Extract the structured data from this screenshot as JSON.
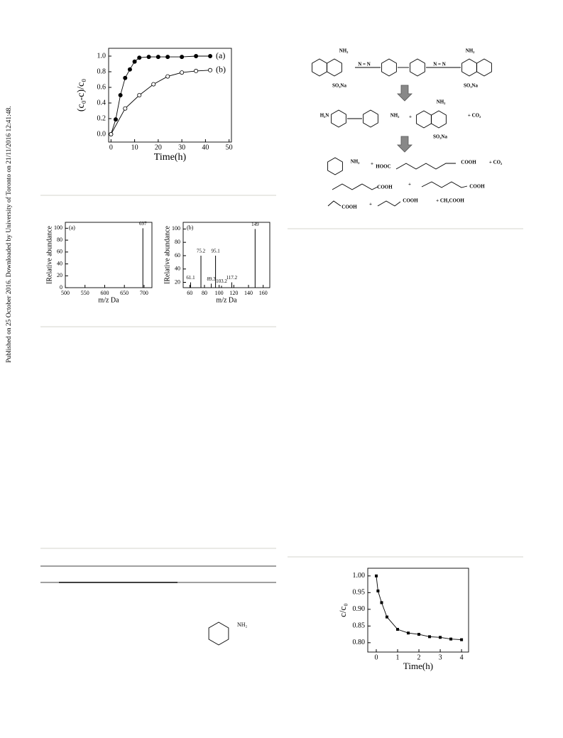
{
  "sidebar": "Published on 25 October 2016. Downloaded by University of Toronto on 21/11/2016 12:41:48.",
  "chart_data": [
    {
      "type": "line",
      "xlabel": "Time(h)",
      "ylabel": "(c₀-c)/c₀",
      "xlim": [
        -1,
        51
      ],
      "ylim": [
        -0.1,
        1.1
      ],
      "xticks": [
        0,
        10,
        20,
        30,
        40,
        50
      ],
      "yticks": [
        {
          "value": 0,
          "label": "0.0"
        },
        {
          "value": 0.2,
          "label": "0.2"
        },
        {
          "value": 0.4,
          "label": "0.4"
        },
        {
          "value": 0.6,
          "label": "0.6"
        },
        {
          "value": 0.8,
          "label": "0.8"
        },
        {
          "value": 1,
          "label": "1.0"
        }
      ],
      "series": [
        {
          "name": "(a)",
          "color": "#000000",
          "marker": "filled",
          "x": [
            0,
            2,
            4,
            6,
            8,
            10,
            12,
            16,
            20,
            24,
            30,
            36,
            42
          ],
          "values": [
            0,
            0.19,
            0.5,
            0.72,
            0.83,
            0.93,
            0.98,
            0.99,
            0.99,
            0.99,
            0.99,
            1.0,
            1.0
          ]
        },
        {
          "name": "(b)",
          "color": "#000000",
          "marker": "open",
          "x": [
            0,
            6,
            12,
            18,
            24,
            30,
            36,
            42
          ],
          "values": [
            0,
            0.33,
            0.5,
            0.64,
            0.74,
            0.79,
            0.81,
            0.82
          ]
        }
      ]
    },
    {
      "type": "stem",
      "panel_label": "(a)",
      "xlabel": "m/z  Da",
      "ylabel": "IRelative abundance",
      "xlim": [
        500,
        720
      ],
      "ylim": [
        0,
        110
      ],
      "xticks": [
        500,
        550,
        600,
        650,
        700
      ],
      "yticks": [
        0,
        20,
        40,
        60,
        80,
        100
      ],
      "color": "#000000",
      "x": [
        697
      ],
      "values": [
        100
      ]
    },
    {
      "type": "stem",
      "panel_label": "(b)",
      "xlabel": "m/z  Da",
      "ylabel": "IRelative abundance",
      "xlim": [
        51,
        169
      ],
      "ylim": [
        12,
        110
      ],
      "xticks": [
        60,
        80,
        100,
        120,
        140,
        160
      ],
      "yticks": [
        20,
        40,
        60,
        80,
        100
      ],
      "color": "#000000",
      "x": [
        61.1,
        75.2,
        89.3,
        95.1,
        103.2,
        117.2,
        149
      ],
      "values": [
        20,
        60,
        18,
        60,
        15,
        20,
        100
      ]
    },
    {
      "type": "line",
      "xlabel": "Time(h)",
      "ylabel": "c/c₀",
      "xlim": [
        -0.4,
        4.33
      ],
      "ylim": [
        0.772,
        1.023
      ],
      "xticks": [
        0,
        1,
        2,
        3,
        4
      ],
      "yticks": [
        {
          "value": 0.8,
          "label": "0.80"
        },
        {
          "value": 0.85,
          "label": "0.85"
        },
        {
          "value": 0.9,
          "label": "0.90"
        },
        {
          "value": 0.95,
          "label": "0.95"
        },
        {
          "value": 1,
          "label": "1.00"
        }
      ],
      "series": [
        {
          "color": "#000000",
          "marker": "square",
          "x": [
            0,
            0.08,
            0.25,
            0.5,
            1,
            1.5,
            2,
            2.5,
            3,
            3.5,
            4
          ],
          "values": [
            1.0,
            0.955,
            0.92,
            0.877,
            0.84,
            0.829,
            0.825,
            0.818,
            0.816,
            0.811,
            0.809
          ]
        }
      ]
    }
  ],
  "scheme": {
    "labels": [
      "NH₂",
      "N = N",
      "N = N",
      "NH₂",
      "SO₃Na",
      "SO₃Na",
      "H₂N",
      "NH₂",
      "+",
      "NH₂",
      "+ CO₂",
      "SO₃Na",
      "NH₂",
      "+",
      "HOOC",
      "COOH",
      "+ CO₂",
      "COOH",
      "+",
      "COOH",
      "COOH",
      "+",
      "COOH",
      "+ CH₃COOH"
    ]
  },
  "structure": {
    "label": "NH₂"
  }
}
